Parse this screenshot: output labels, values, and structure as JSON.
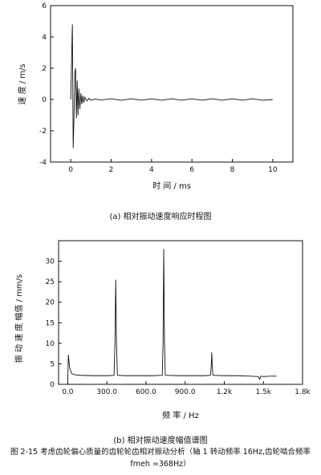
{
  "chart_data": [
    {
      "type": "line",
      "xlabel": "时 间 / ms",
      "ylabel": "速 度 / m/s",
      "xlim": [
        -1,
        11
      ],
      "ylim": [
        -4,
        6
      ],
      "xticks": [
        "0",
        "2",
        "4",
        "6",
        "8",
        "10"
      ],
      "yticks": [
        "-4",
        "-2",
        "0",
        "2",
        "4",
        "6"
      ],
      "x": [
        0,
        0.04,
        0.08,
        0.1,
        0.12,
        0.16,
        0.2,
        0.24,
        0.28,
        0.32,
        0.36,
        0.4,
        0.45,
        0.5,
        0.55,
        0.6,
        0.65,
        0.7,
        0.8,
        0.9,
        1.0,
        1.2,
        1.5,
        2.0,
        2.5,
        3.0,
        3.5,
        4.0,
        4.5,
        5.0,
        5.5,
        6.0,
        6.5,
        7.0,
        7.5,
        8.0,
        8.5,
        9.0,
        9.5,
        10.0
      ],
      "y": [
        0,
        2.5,
        4.8,
        1.0,
        -3.1,
        -1.2,
        1.7,
        2.0,
        -1.2,
        1.2,
        -1.0,
        0.7,
        -0.6,
        0.4,
        -0.3,
        0.25,
        -0.2,
        0.15,
        -0.1,
        0.08,
        -0.05,
        0.03,
        -0.03,
        0.05,
        -0.05,
        0.05,
        -0.05,
        0.05,
        -0.05,
        0.05,
        -0.05,
        0.05,
        -0.05,
        0.05,
        -0.05,
        0.05,
        -0.05,
        0.05,
        -0.05,
        0.0
      ],
      "caption": "(a) 相对振动速度响应时程图"
    },
    {
      "type": "line",
      "xlabel": "频 率 / Hz",
      "ylabel": "振 动 速 度 幅值 / mm/s",
      "xlim": [
        -70,
        1800
      ],
      "ylim": [
        0,
        35
      ],
      "xticks": [
        "0.0",
        "300.0",
        "600.0",
        "900.0",
        "1.2k",
        "1.5k",
        "1.8k"
      ],
      "yticks": [
        "0",
        "5",
        "10",
        "15",
        "20",
        "25",
        "30"
      ],
      "x": [
        0,
        5,
        15,
        30,
        60,
        100,
        200,
        300,
        355,
        362,
        368,
        374,
        381,
        450,
        550,
        650,
        725,
        731,
        736,
        742,
        748,
        850,
        950,
        1050,
        1095,
        1100,
        1104,
        1108,
        1113,
        1200,
        1300,
        1400,
        1460,
        1472,
        1480,
        1500,
        1550,
        1600
      ],
      "y": [
        0,
        7.2,
        4.0,
        2.6,
        2.3,
        2.2,
        2.1,
        2.1,
        2.2,
        10,
        25.5,
        10,
        2.2,
        2.1,
        2.1,
        2.1,
        2.2,
        10,
        33,
        10,
        2.2,
        2.1,
        2.1,
        2.1,
        2.2,
        4.5,
        7.8,
        4.5,
        2.2,
        2.1,
        2.1,
        2.0,
        1.9,
        1.2,
        2.0,
        1.9,
        2.0,
        2.0
      ],
      "caption": "(b) 相对振动速度幅值谱图"
    }
  ],
  "figure_caption_line1": "图 2-15 考虑齿轮偏心质量的齿轮轮齿相对振动分析（轴 1 转动频率 16Hz,齿轮啮合频率",
  "figure_caption_line2": "fmeh =368Hz）"
}
